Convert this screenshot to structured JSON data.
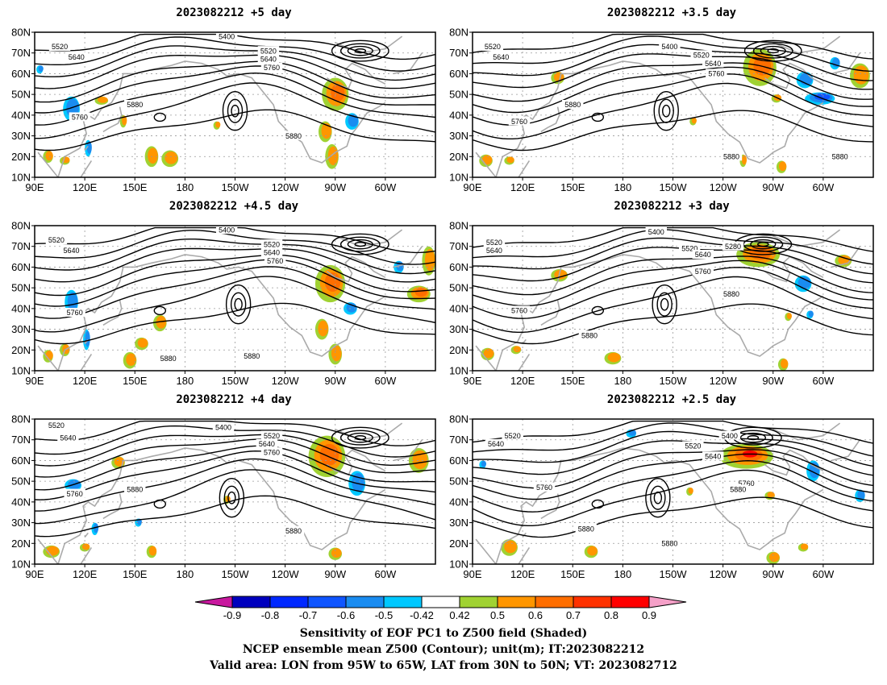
{
  "panels": [
    {
      "title": "2023082212 +5 day",
      "contour_labels": [
        "5520",
        "5640",
        "5400",
        "5520",
        "5640",
        "5760",
        "5880",
        "5760",
        "5880"
      ]
    },
    {
      "title": "2023082212 +3.5 day",
      "contour_labels": [
        "5520",
        "5640",
        "5400",
        "5520",
        "5640",
        "5760",
        "5880",
        "5760",
        "5880",
        "5880"
      ]
    },
    {
      "title": "2023082212 +4.5 day",
      "contour_labels": [
        "5520",
        "5640",
        "5400",
        "5520",
        "5640",
        "5760",
        "5760",
        "5880",
        "5880"
      ]
    },
    {
      "title": "2023082212 +3 day",
      "contour_labels": [
        "5520",
        "5640",
        "5400",
        "5520",
        "5640",
        "5280",
        "5760",
        "5760",
        "5880",
        "5880"
      ]
    },
    {
      "title": "2023082212 +4 day",
      "contour_labels": [
        "5520",
        "5640",
        "5400",
        "5520",
        "5640",
        "5760",
        "5880",
        "5760",
        "5880"
      ]
    },
    {
      "title": "2023082212 +2.5 day",
      "contour_labels": [
        "5640",
        "5520",
        "5520",
        "5400",
        "5640",
        "5760",
        "5880",
        "5760",
        "5880",
        "5880"
      ]
    }
  ],
  "lat_ticks": [
    "80N",
    "70N",
    "60N",
    "50N",
    "40N",
    "30N",
    "20N",
    "10N"
  ],
  "lon_ticks": [
    "90E",
    "120E",
    "150E",
    "180",
    "150W",
    "120W",
    "90W",
    "60W"
  ],
  "colorbar": {
    "labels": [
      "-0.9",
      "-0.8",
      "-0.7",
      "-0.6",
      "-0.5",
      "-0.42",
      "0.42",
      "0.5",
      "0.6",
      "0.7",
      "0.8",
      "0.9"
    ],
    "colors": [
      "#c8189e",
      "#0000be",
      "#0028ff",
      "#0f55ff",
      "#1a8cf0",
      "#00c8ff",
      "#ffffff",
      "#a0d232",
      "#ff9600",
      "#ff6e00",
      "#ff3200",
      "#ff0000",
      "#f5a0c8"
    ]
  },
  "footer": [
    "Sensitivity of EOF PC1 to Z500 field (Shaded)",
    "NCEP ensemble mean Z500 (Contour); unit(m); IT:2023082212",
    "Valid area: LON from 95W to 65W, LAT from 30N to 50N; VT: 2023082712"
  ]
}
